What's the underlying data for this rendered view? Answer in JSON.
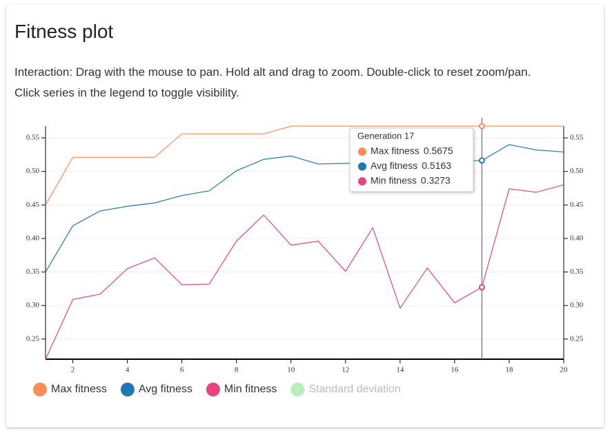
{
  "header": {
    "title": "Fitness plot",
    "lines": [
      "Interaction: Drag with the mouse to pan. Hold alt and drag to zoom. Double-click to reset zoom/pan.",
      "Click series in the legend to toggle visibility."
    ]
  },
  "chart_data": {
    "type": "line",
    "x": [
      1,
      2,
      3,
      4,
      5,
      6,
      7,
      8,
      9,
      10,
      11,
      12,
      13,
      14,
      15,
      16,
      17,
      18,
      19,
      20
    ],
    "series": [
      {
        "name": "Max fitness",
        "color": "#fc8d59",
        "values": [
          0.45,
          0.521,
          0.521,
          0.521,
          0.521,
          0.556,
          0.556,
          0.556,
          0.556,
          0.5675,
          0.5675,
          0.5675,
          0.5675,
          0.5675,
          0.5675,
          0.5675,
          0.5675,
          0.5675,
          0.5675,
          0.5675
        ]
      },
      {
        "name": "Avg fitness",
        "color": "#1f78b4",
        "values": [
          0.35,
          0.419,
          0.441,
          0.448,
          0.453,
          0.464,
          0.471,
          0.501,
          0.518,
          0.523,
          0.511,
          0.512,
          0.513,
          0.514,
          0.514,
          0.515,
          0.5163,
          0.54,
          0.532,
          0.529
        ]
      },
      {
        "name": "Min fitness",
        "color": "#e7437f",
        "values": [
          0.22,
          0.309,
          0.317,
          0.355,
          0.371,
          0.331,
          0.332,
          0.396,
          0.435,
          0.39,
          0.396,
          0.351,
          0.416,
          0.296,
          0.356,
          0.304,
          0.3273,
          0.474,
          0.469,
          0.48
        ]
      }
    ],
    "hidden_series": [
      {
        "name": "Standard deviation",
        "color": "#b9eeb9"
      }
    ],
    "xlim": [
      1,
      20
    ],
    "xticks": [
      2,
      4,
      6,
      8,
      10,
      12,
      14,
      16,
      18,
      20
    ],
    "ylim": [
      0.22,
      0.5675
    ],
    "yticks": [
      0.25,
      {
        "value": 0.3,
        "label": "0.30"
      },
      0.35,
      {
        "value": 0.4,
        "label": "0.40"
      },
      0.45,
      {
        "value": 0.5,
        "label": "0.50"
      },
      0.55
    ],
    "grid": true,
    "highlight_x": 17,
    "tooltip_title": "Generation 17"
  }
}
